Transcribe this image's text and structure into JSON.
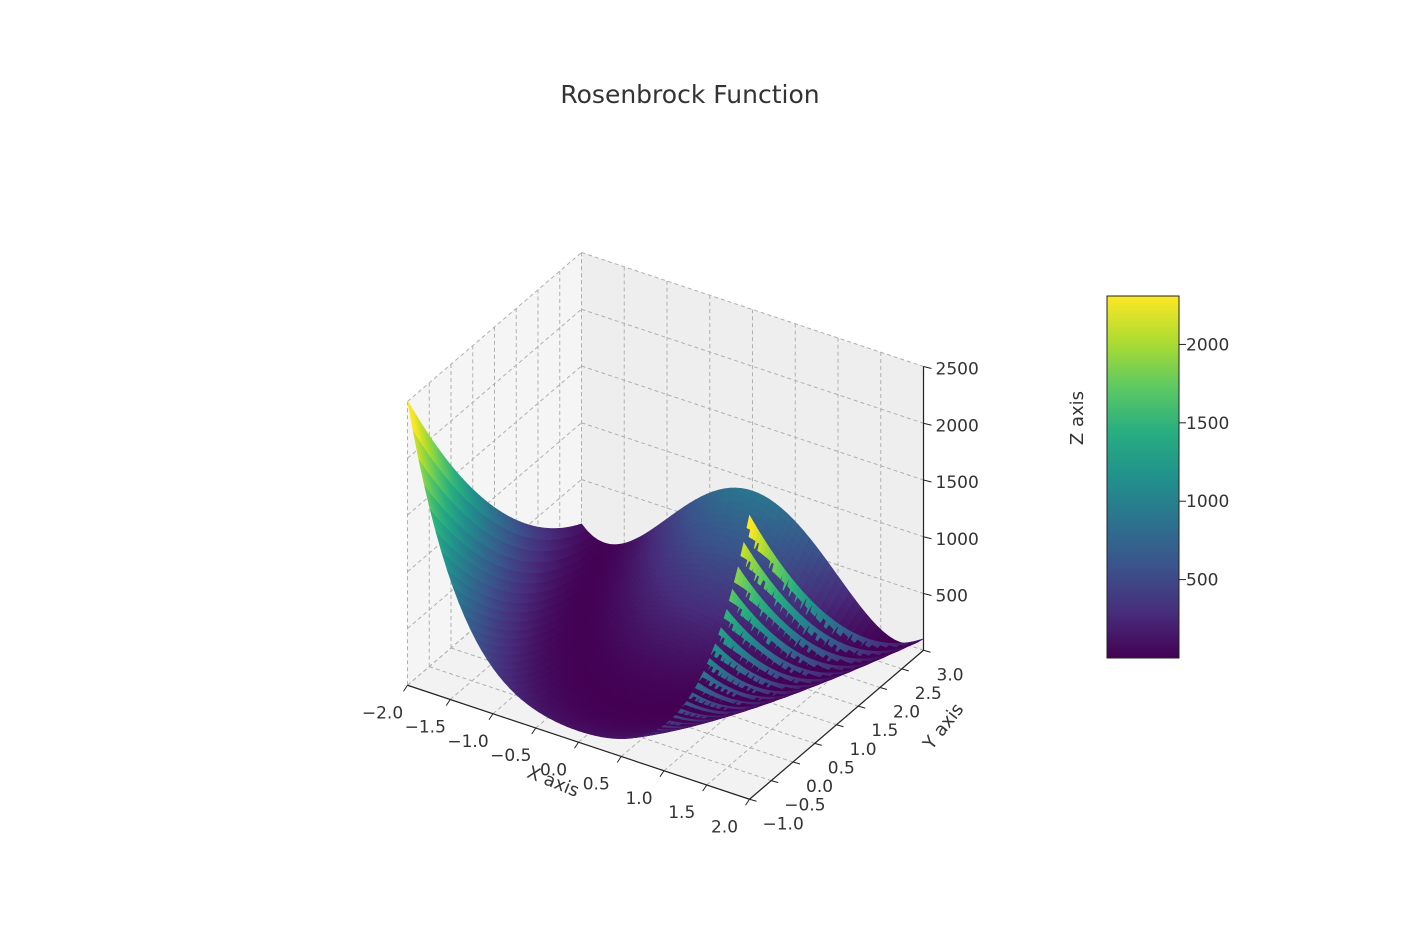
{
  "chart_data": {
    "type": "surface",
    "title": "Rosenbrock Function",
    "function": "(1 - x)^2 + 100 * (y - x^2)^2",
    "x": {
      "label": "X axis",
      "range": [
        -2.0,
        2.0
      ],
      "ticks": [
        "−2.0",
        "−1.5",
        "−1.0",
        "−0.5",
        "0.0",
        "0.5",
        "1.0",
        "1.5",
        "2.0"
      ]
    },
    "y": {
      "label": "Y axis",
      "range": [
        -1.0,
        3.0
      ],
      "ticks": [
        "−1.0",
        "−0.5",
        "0.0",
        "0.5",
        "1.0",
        "1.5",
        "2.0",
        "2.5",
        "3.0"
      ]
    },
    "z": {
      "label": "Z axis",
      "range": [
        0,
        2500
      ],
      "ticks": [
        "500",
        "1000",
        "1500",
        "2000",
        "2500"
      ]
    },
    "colorbar": {
      "colormap": "viridis",
      "range": [
        0,
        2309
      ],
      "ticks": [
        "500",
        "1000",
        "1500",
        "2000"
      ]
    },
    "grid": true,
    "colormap_stops": [
      "#440154",
      "#472d7b",
      "#3b528b",
      "#2c728e",
      "#21918c",
      "#28ae80",
      "#5ec962",
      "#addc30",
      "#fde725"
    ]
  }
}
